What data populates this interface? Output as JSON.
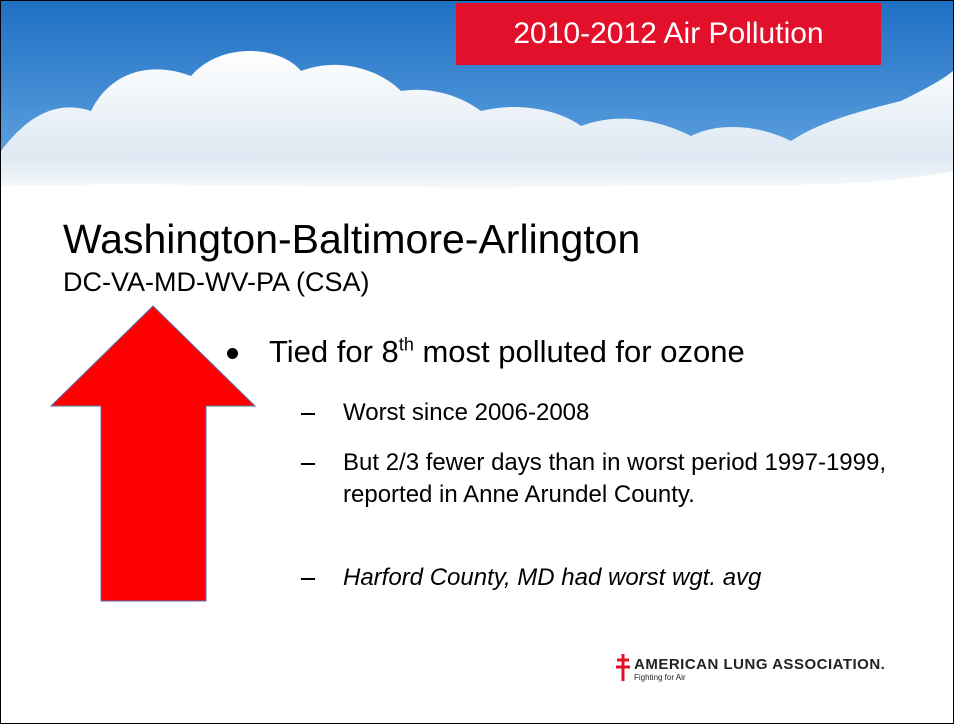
{
  "header": {
    "tag": "2010-2012 Air Pollution"
  },
  "title": "Washington-Baltimore-Arlington",
  "subtitle": "DC-VA-MD-WV-PA (CSA)",
  "bullet": {
    "before": "Tied for 8",
    "sup": "th",
    "after": " most polluted for ozone"
  },
  "sub_bullets": [
    "Worst since 2006-2008",
    "But 2/3 fewer days than in worst period 1997-1999, reported in Anne Arundel County.",
    "Harford County, MD had worst wgt. avg"
  ],
  "logo": {
    "name": "AMERICAN LUNG ASSOCIATION.",
    "tagline": "Fighting for Air"
  }
}
